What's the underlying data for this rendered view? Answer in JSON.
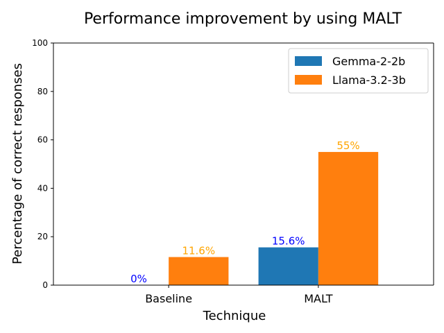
{
  "chart_data": {
    "type": "bar",
    "title": "Performance improvement by using MALT",
    "xlabel": "Technique",
    "ylabel": "Percentage of correct responses",
    "categories": [
      "Baseline",
      "MALT"
    ],
    "series": [
      {
        "name": "Gemma-2-2b",
        "values": [
          0,
          15.6
        ],
        "color": "#1f77b4",
        "label_color": "#0000ff",
        "labels": [
          "0%",
          "15.6%"
        ]
      },
      {
        "name": "Llama-3.2-3b",
        "values": [
          11.6,
          55
        ],
        "color": "#ff7f0e",
        "label_color": "#ffa500",
        "labels": [
          "11.6%",
          "55%"
        ]
      }
    ],
    "ylim": [
      0,
      100
    ],
    "yticks": [
      0,
      20,
      40,
      60,
      80,
      100
    ],
    "grid": false,
    "legend": "top-right"
  }
}
